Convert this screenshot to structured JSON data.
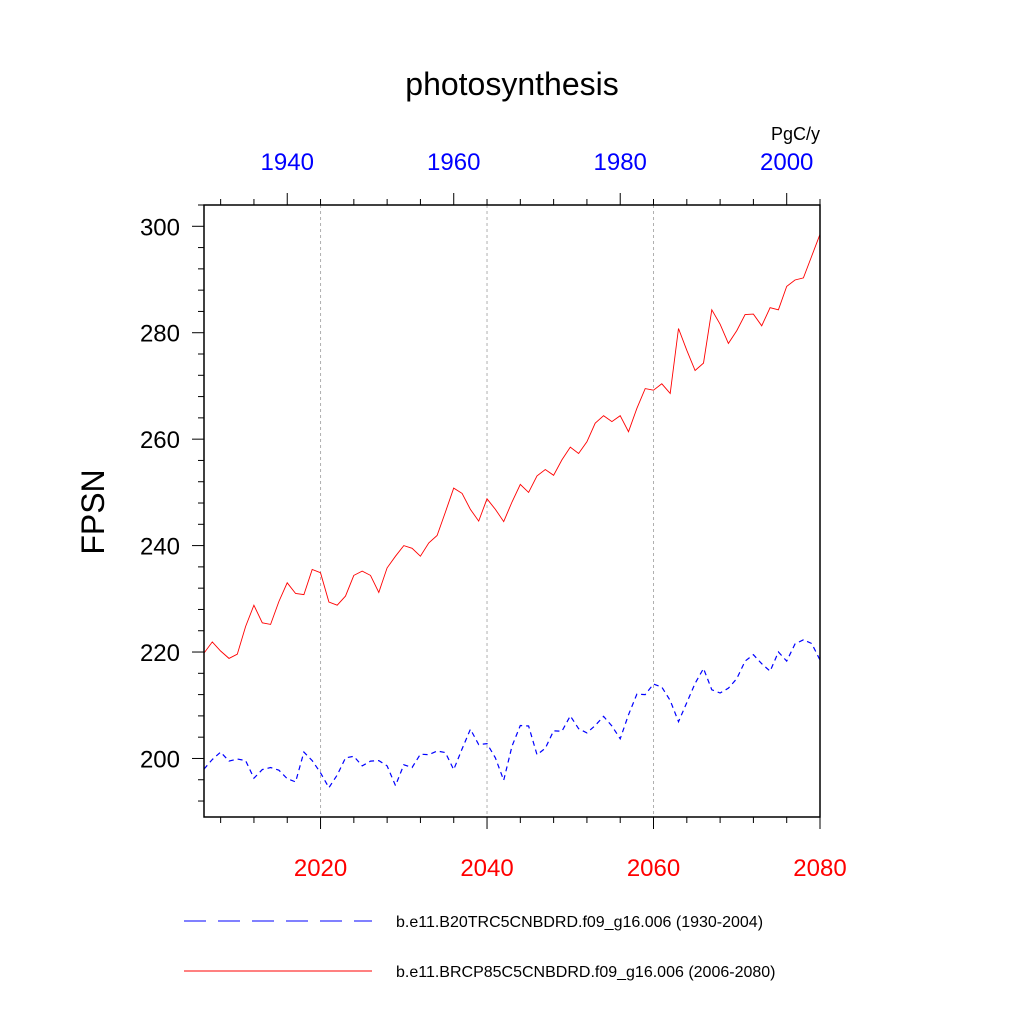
{
  "chart_data": {
    "type": "line",
    "title": "photosynthesis",
    "ylabel": "FPSN",
    "units": "PgC/y",
    "ylim": [
      189,
      304
    ],
    "yticks": [
      200,
      220,
      240,
      260,
      280,
      300
    ],
    "bottom_axis": {
      "range": [
        2006,
        2080
      ],
      "ticks": [
        2020,
        2040,
        2060,
        2080
      ],
      "color": "#ff0000"
    },
    "top_axis": {
      "range": [
        1930,
        2004
      ],
      "ticks": [
        1940,
        1960,
        1980,
        2000
      ],
      "color": "#0000ff"
    },
    "gridlines_at_bottom_axis": [
      2020,
      2040,
      2060
    ],
    "series": [
      {
        "name": "b.e11.B20TRC5CNBDRD.f09_g16.006 (1930-2004)",
        "axis": "top",
        "start": 1930,
        "color": "#0000ff",
        "dash": "dashed",
        "values": [
          198.0,
          199.8,
          201.2,
          199.5,
          199.9,
          199.6,
          196.3,
          197.9,
          198.3,
          197.8,
          196.2,
          195.6,
          201.2,
          199.6,
          197.3,
          194.5,
          196.9,
          200.1,
          200.4,
          198.6,
          199.5,
          199.6,
          198.6,
          194.9,
          198.8,
          198.3,
          200.8,
          200.7,
          201.4,
          201.1,
          197.9,
          201.8,
          205.5,
          202.6,
          202.8,
          200.1,
          195.9,
          202.3,
          206.2,
          206.1,
          200.7,
          201.9,
          205.2,
          205.1,
          208.0,
          205.6,
          204.8,
          206.2,
          207.9,
          206.1,
          203.7,
          208.2,
          212.1,
          212.0,
          214.0,
          213.4,
          210.9,
          206.9,
          210.5,
          214.1,
          216.9,
          212.9,
          212.3,
          213.2,
          215.0,
          218.3,
          219.5,
          217.8,
          216.4,
          220.0,
          218.3,
          221.5,
          222.3,
          221.6,
          218.5
        ]
      },
      {
        "name": "b.e11.BRCP85C5CNBDRD.f09_g16.006 (2006-2080)",
        "axis": "bottom",
        "start": 2006,
        "color": "#ff0000",
        "dash": "solid",
        "values": [
          219.8,
          221.9,
          220.2,
          218.8,
          219.6,
          224.8,
          228.8,
          225.5,
          225.2,
          229.5,
          233.0,
          231.0,
          230.8,
          235.5,
          234.9,
          229.4,
          228.8,
          230.5,
          234.4,
          235.2,
          234.4,
          231.2,
          235.8,
          238.0,
          240.0,
          239.5,
          238.0,
          240.5,
          241.9,
          246.3,
          250.8,
          249.8,
          246.8,
          244.6,
          248.8,
          246.8,
          244.5,
          248.2,
          251.5,
          250.0,
          253.1,
          254.3,
          253.2,
          256.1,
          258.5,
          257.3,
          259.5,
          263.0,
          264.4,
          263.3,
          264.4,
          261.4,
          265.8,
          269.5,
          269.2,
          270.4,
          268.6,
          280.8,
          276.7,
          272.9,
          274.3,
          284.3,
          281.6,
          278.0,
          280.4,
          283.4,
          283.5,
          281.3,
          284.7,
          284.3,
          288.7,
          289.9,
          290.3,
          294.4,
          298.5
        ]
      }
    ]
  }
}
